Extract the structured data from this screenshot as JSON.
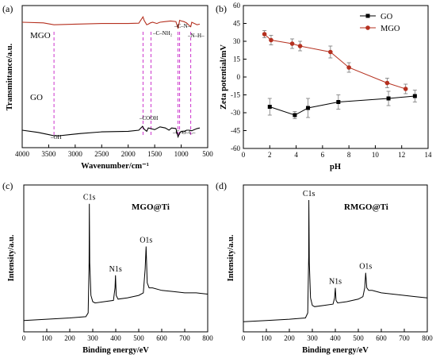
{
  "colors": {
    "mgo_line": "#b5301f",
    "go_line": "#000000",
    "guide_line": "#cc33cc",
    "marker_mgo": "#b5301f",
    "marker_go": "#000000",
    "errorbar": "#777777"
  },
  "chart_data": [
    {
      "panel": "(a)",
      "type": "line",
      "xlabel": "Wavenumber/cm⁻¹",
      "ylabel": "Transmittance/a.u.",
      "xlim": [
        4000,
        500
      ],
      "xticks": [
        "4000",
        "3500",
        "3000",
        "2500",
        "2000",
        "1500",
        "1000",
        "500"
      ],
      "series": [
        {
          "name": "MGO",
          "x": [
            4000,
            3600,
            3400,
            3000,
            2500,
            2000,
            1800,
            1720,
            1700,
            1650,
            1620,
            1580,
            1540,
            1460,
            1400,
            1300,
            1200,
            1100,
            1060,
            1030,
            1000,
            950,
            900,
            850,
            820,
            800,
            750,
            700,
            650
          ],
          "y": [
            0.8,
            0.78,
            0.72,
            0.74,
            0.76,
            0.76,
            0.77,
            0.97,
            0.86,
            0.72,
            0.74,
            0.78,
            0.8,
            0.76,
            0.8,
            0.82,
            0.84,
            0.82,
            0.6,
            0.86,
            0.84,
            0.82,
            0.78,
            0.7,
            0.66,
            0.8,
            0.76,
            0.72,
            0.74
          ]
        },
        {
          "name": "GO",
          "x": [
            4000,
            3700,
            3500,
            3400,
            3300,
            3100,
            2900,
            2500,
            2000,
            1800,
            1730,
            1700,
            1650,
            1620,
            1580,
            1500,
            1400,
            1300,
            1230,
            1180,
            1100,
            1060,
            1030,
            1000,
            950,
            900,
            850,
            800,
            750,
            700,
            650
          ],
          "y": [
            0.3,
            0.26,
            0.22,
            0.2,
            0.2,
            0.22,
            0.24,
            0.27,
            0.28,
            0.3,
            0.37,
            0.32,
            0.28,
            0.34,
            0.33,
            0.31,
            0.36,
            0.34,
            0.3,
            0.34,
            0.33,
            0.18,
            0.25,
            0.28,
            0.27,
            0.3,
            0.3,
            0.29,
            0.31,
            0.33,
            0.34
          ]
        }
      ],
      "series_labels": [
        "MGO",
        "GO"
      ],
      "annotations": [
        "–OH",
        "–COOH",
        "–C–NH₂",
        "–C–N–",
        "–N–H–",
        "–C–O–C–"
      ],
      "guide_lines_x": [
        3400,
        1720,
        1570,
        1060,
        1030,
        820
      ]
    },
    {
      "panel": "(b)",
      "type": "line",
      "xlabel": "pH",
      "ylabel": "Zeta potential/mV",
      "xlim": [
        0,
        14
      ],
      "ylim": [
        -60,
        60
      ],
      "xticks": [
        "0",
        "2",
        "4",
        "6",
        "8",
        "10",
        "12",
        "14"
      ],
      "yticks": [
        "60",
        "45",
        "30",
        "15",
        "0",
        "-15",
        "-30",
        "-45",
        "-60"
      ],
      "legend_position": "top-right",
      "series": [
        {
          "name": "GO",
          "marker": "square",
          "x": [
            2.0,
            3.9,
            4.9,
            7.2,
            11.0,
            13.0
          ],
          "y": [
            -25.0,
            -32.0,
            -26.0,
            -21.0,
            -18.0,
            -16.0
          ],
          "err": [
            7,
            3,
            8,
            6,
            6,
            5
          ]
        },
        {
          "name": "MGO",
          "marker": "circle",
          "x": [
            1.6,
            2.1,
            3.7,
            4.3,
            6.6,
            8.0,
            10.9,
            12.3
          ],
          "y": [
            36.0,
            31.0,
            28.0,
            26.0,
            21.0,
            8.0,
            -5.0,
            -10.0
          ],
          "err": [
            3,
            4,
            4,
            4,
            5,
            4,
            4,
            4
          ]
        }
      ]
    },
    {
      "panel": "(c)",
      "type": "line",
      "title": "MGO@Ti",
      "xlabel": "Binding energy/eV",
      "ylabel": "Intensity/a.u.",
      "xlim": [
        0,
        800
      ],
      "xticks": [
        "0",
        "100",
        "200",
        "300",
        "400",
        "500",
        "600",
        "700",
        "800"
      ],
      "peaks": [
        {
          "label": "C1s",
          "x": 285
        },
        {
          "label": "N1s",
          "x": 399
        },
        {
          "label": "O1s",
          "x": 532
        }
      ],
      "series": [
        {
          "x": [
            0,
            100,
            200,
            270,
            280,
            284,
            285,
            287,
            292,
            300,
            310,
            350,
            390,
            397,
            399,
            402,
            410,
            450,
            500,
            520,
            528,
            532,
            537,
            545,
            560,
            600,
            650,
            700,
            750,
            800
          ],
          "y": [
            0.04,
            0.05,
            0.06,
            0.07,
            0.1,
            0.5,
            0.97,
            0.5,
            0.24,
            0.19,
            0.18,
            0.19,
            0.2,
            0.3,
            0.4,
            0.24,
            0.21,
            0.22,
            0.24,
            0.26,
            0.45,
            0.63,
            0.34,
            0.3,
            0.3,
            0.28,
            0.27,
            0.26,
            0.26,
            0.25
          ]
        }
      ]
    },
    {
      "panel": "(d)",
      "type": "line",
      "title": "RMGO@Ti",
      "xlabel": "Binding energy/eV",
      "ylabel": "Intensity/a.u.",
      "xlim": [
        0,
        800
      ],
      "xticks": [
        "0",
        "100",
        "200",
        "300",
        "400",
        "500",
        "600",
        "700",
        "800"
      ],
      "peaks": [
        {
          "label": "C1s",
          "x": 285
        },
        {
          "label": "N1s",
          "x": 400
        },
        {
          "label": "O1s",
          "x": 532
        }
      ],
      "series": [
        {
          "x": [
            0,
            100,
            200,
            270,
            280,
            284,
            285,
            287,
            292,
            300,
            310,
            350,
            390,
            397,
            400,
            403,
            410,
            450,
            500,
            520,
            528,
            532,
            537,
            545,
            560,
            600,
            650,
            700,
            750,
            800
          ],
          "y": [
            0.03,
            0.04,
            0.05,
            0.06,
            0.1,
            0.55,
            1.0,
            0.5,
            0.22,
            0.16,
            0.15,
            0.16,
            0.17,
            0.22,
            0.3,
            0.2,
            0.18,
            0.19,
            0.21,
            0.23,
            0.3,
            0.42,
            0.3,
            0.28,
            0.28,
            0.26,
            0.25,
            0.24,
            0.23,
            0.22
          ]
        }
      ]
    }
  ]
}
